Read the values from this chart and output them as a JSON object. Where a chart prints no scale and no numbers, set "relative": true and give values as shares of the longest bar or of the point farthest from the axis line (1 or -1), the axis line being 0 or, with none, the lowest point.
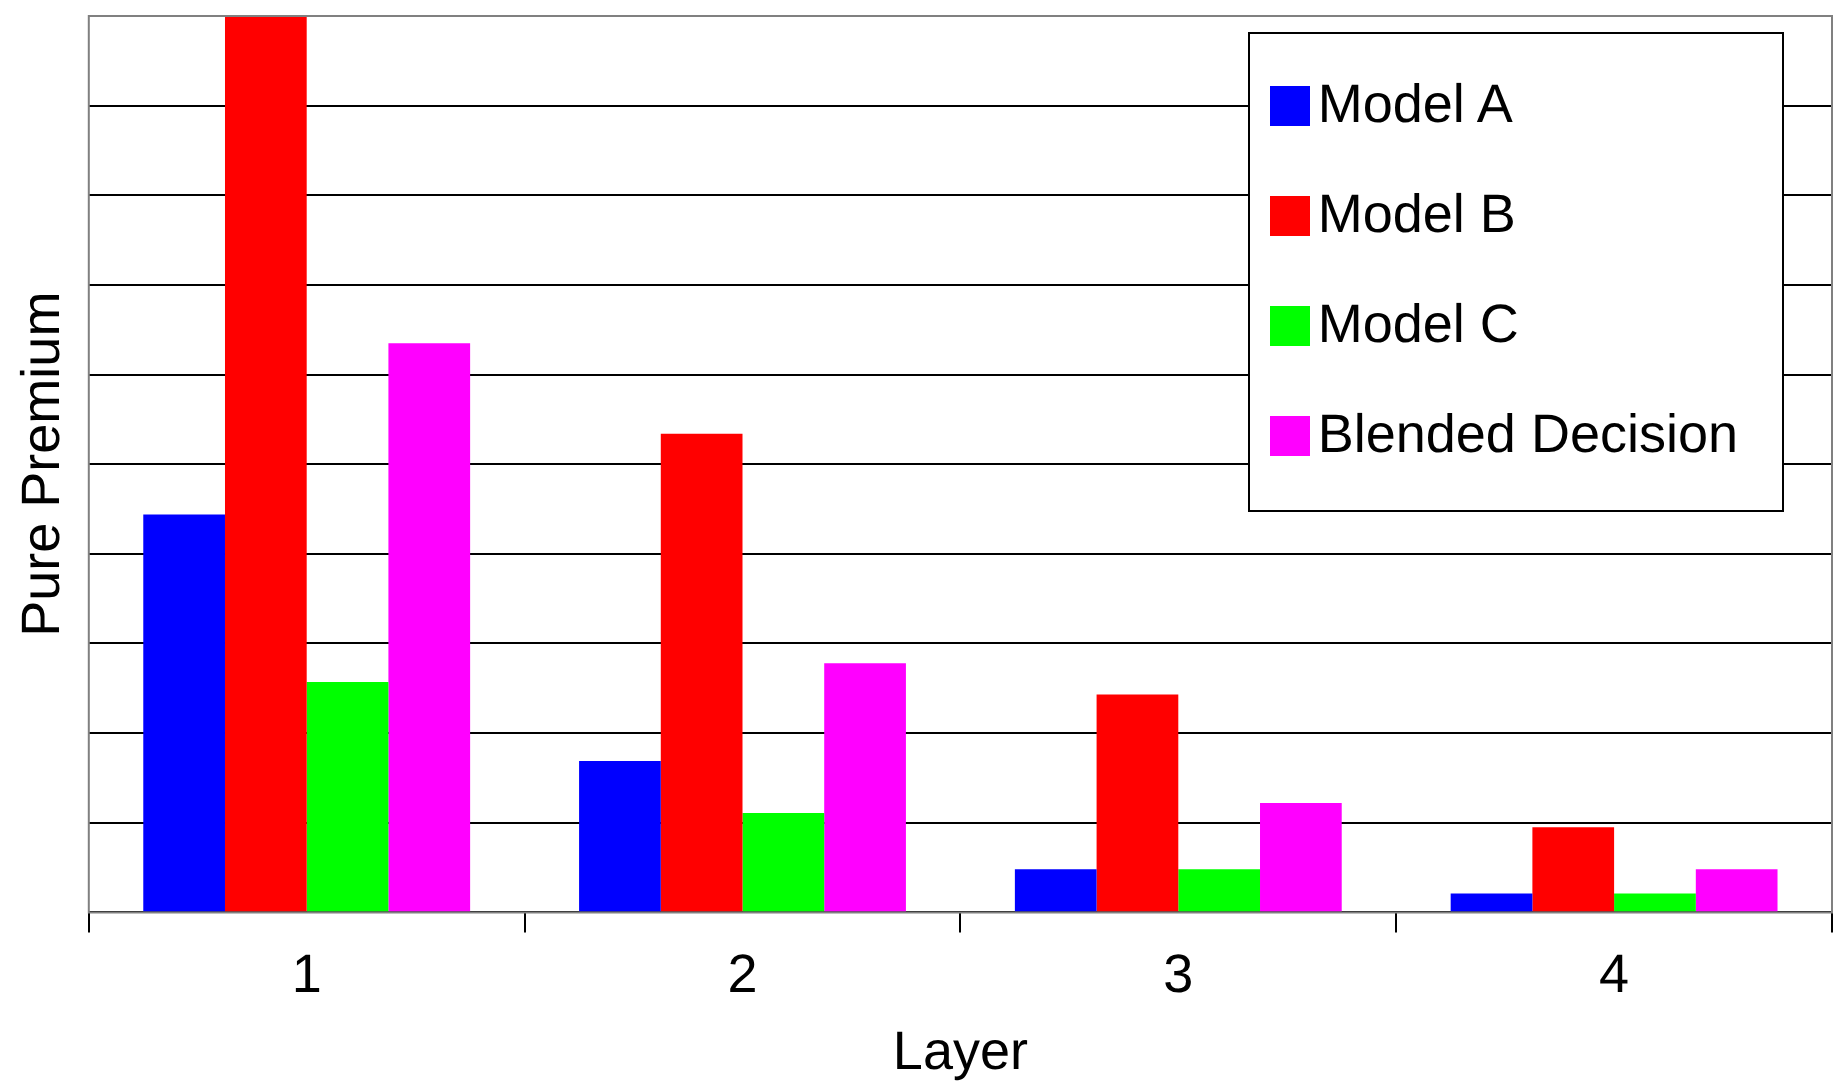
{
  "chart_data": {
    "type": "bar",
    "relative": true,
    "xlabel": "Layer",
    "ylabel": "Pure Premium",
    "categories": [
      "1",
      "2",
      "3",
      "4"
    ],
    "grid": "y",
    "legend": "top right",
    "series": [
      {
        "name": "Model A",
        "color": "#0000ff",
        "values": [
          0.444,
          0.169,
          0.048,
          0.021
        ]
      },
      {
        "name": "Model B",
        "color": "#ff0000",
        "values": [
          1,
          0.534,
          0.243,
          0.095
        ]
      },
      {
        "name": "Model C",
        "color": "#00ff00",
        "values": [
          0.257,
          0.111,
          0.048,
          0.021
        ]
      },
      {
        "name": "Blended Decision",
        "color": "#ff00ff",
        "values": [
          0.635,
          0.278,
          0.122,
          0.048
        ]
      }
    ]
  }
}
